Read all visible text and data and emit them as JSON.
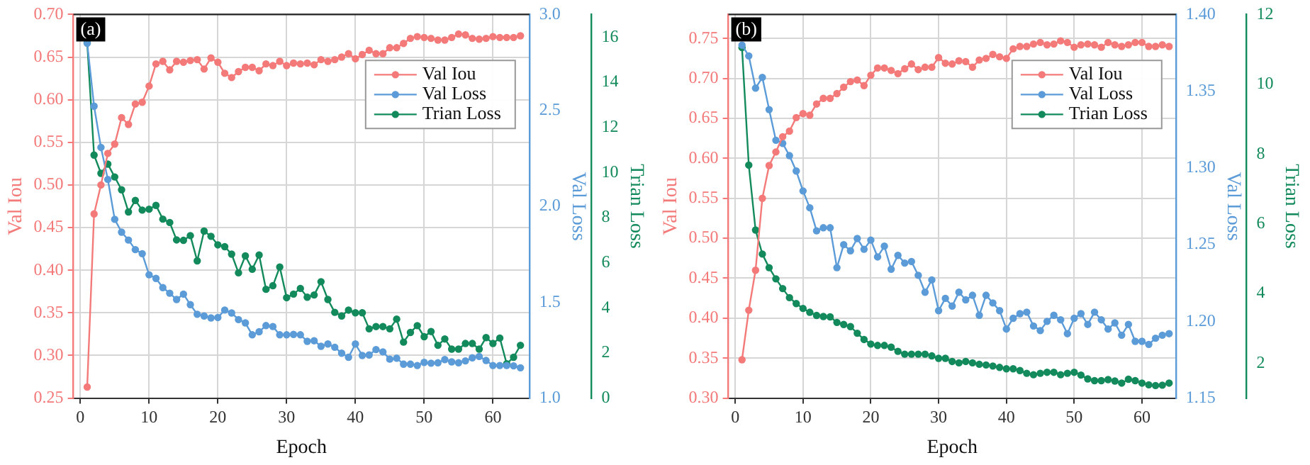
{
  "chart_data": [
    {
      "type": "line",
      "xlabel": "Epoch",
      "ylabel": "Val Iou",
      "y2label": "Val Loss",
      "y3label": "Trian Loss",
      "annotations": [
        "(a)"
      ],
      "grid": true,
      "legend": "top right",
      "marker": "circle",
      "line_style": "solid",
      "x": [
        1,
        2,
        3,
        4,
        5,
        6,
        7,
        8,
        9,
        10,
        11,
        12,
        13,
        14,
        15,
        16,
        17,
        18,
        19,
        20,
        21,
        22,
        23,
        24,
        25,
        26,
        27,
        28,
        29,
        30,
        31,
        32,
        33,
        34,
        35,
        36,
        37,
        38,
        39,
        40,
        41,
        42,
        43,
        44,
        45,
        46,
        47,
        48,
        49,
        50,
        51,
        52,
        53,
        54,
        55,
        56,
        57,
        58,
        59,
        60,
        61,
        62,
        63,
        64
      ],
      "xlim": [
        -1,
        65.3
      ],
      "xticks": [
        0,
        10,
        20,
        30,
        40,
        50,
        60
      ],
      "ylim": [
        0.25,
        0.7
      ],
      "yticks": [
        0.25,
        {
          "value": 0.3,
          "label": "0.30"
        },
        0.35,
        {
          "value": 0.4,
          "label": "0.40"
        },
        0.45,
        {
          "value": 0.5,
          "label": "0.50"
        },
        0.55,
        {
          "value": 0.6,
          "label": "0.60"
        },
        0.65,
        {
          "value": 0.7,
          "label": "0.70"
        }
      ],
      "y2lim": [
        1,
        3
      ],
      "y2ticks": [
        {
          "value": 1,
          "label": "1.0"
        },
        1.5,
        {
          "value": 2,
          "label": "2.0"
        },
        2.5,
        {
          "value": 3,
          "label": "3.0"
        }
      ],
      "y3lim": [
        0,
        17
      ],
      "y3ticks": [
        0,
        2,
        4,
        6,
        8,
        10,
        12,
        14,
        16
      ],
      "series": [
        {
          "name": "Val Iou",
          "color": "#f47a7a",
          "values": [
            0.263,
            0.466,
            0.5,
            0.537,
            0.548,
            0.579,
            0.571,
            0.595,
            0.597,
            0.616,
            0.642,
            0.645,
            0.635,
            0.645,
            0.644,
            0.646,
            0.647,
            0.636,
            0.649,
            0.644,
            0.631,
            0.626,
            0.633,
            0.638,
            0.638,
            0.634,
            0.642,
            0.64,
            0.645,
            0.64,
            0.643,
            0.642,
            0.643,
            0.641,
            0.647,
            0.645,
            0.647,
            0.65,
            0.654,
            0.648,
            0.653,
            0.658,
            0.654,
            0.654,
            0.661,
            0.661,
            0.666,
            0.672,
            0.674,
            0.673,
            0.672,
            0.67,
            0.67,
            0.673,
            0.677,
            0.676,
            0.672,
            0.671,
            0.672,
            0.674,
            0.673,
            0.673,
            0.673,
            0.675
          ]
        },
        {
          "name": "Val Loss",
          "color": "#5b9bd8",
          "axis": "y2",
          "values": [
            2.85,
            2.522,
            2.307,
            2.14,
            1.932,
            1.865,
            1.824,
            1.774,
            1.753,
            1.643,
            1.624,
            1.576,
            1.547,
            1.514,
            1.542,
            1.487,
            1.437,
            1.428,
            1.418,
            1.42,
            1.459,
            1.444,
            1.409,
            1.392,
            1.33,
            1.346,
            1.378,
            1.373,
            1.33,
            1.33,
            1.332,
            1.33,
            1.296,
            1.299,
            1.27,
            1.282,
            1.265,
            1.234,
            1.213,
            1.282,
            1.222,
            1.225,
            1.253,
            1.241,
            1.203,
            1.208,
            1.177,
            1.177,
            1.17,
            1.186,
            1.182,
            1.184,
            1.201,
            1.189,
            1.184,
            1.194,
            1.21,
            1.217,
            1.196,
            1.17,
            1.17,
            1.17,
            1.168,
            1.158
          ]
        },
        {
          "name": "Trian Loss",
          "color": "#138a5c",
          "axis": "y3",
          "values": [
            15.75,
            10.77,
            9.96,
            10.37,
            9.8,
            9.23,
            8.25,
            8.76,
            8.33,
            8.37,
            8.54,
            7.93,
            7.78,
            7.01,
            6.99,
            7.2,
            6.08,
            7.4,
            7.17,
            6.79,
            6.71,
            6.38,
            5.55,
            6.3,
            5.71,
            6.34,
            4.82,
            4.98,
            5.81,
            4.45,
            4.61,
            4.86,
            4.47,
            4.57,
            5.16,
            4.37,
            3.8,
            3.64,
            3.9,
            3.78,
            3.78,
            3.07,
            3.17,
            3.17,
            3.07,
            3.5,
            2.48,
            2.91,
            3.21,
            2.72,
            2.95,
            2.34,
            2.62,
            2.17,
            2.17,
            2.42,
            2.42,
            2.17,
            2.68,
            2.42,
            2.66,
            1.52,
            1.81,
            2.34
          ]
        }
      ]
    },
    {
      "type": "line",
      "xlabel": "Epoch",
      "ylabel": "Val Iou",
      "y2label": "Val Loss",
      "y3label": "Trian Loss",
      "annotations": [
        "(b)"
      ],
      "grid": true,
      "legend": "top right",
      "marker": "circle",
      "line_style": "solid",
      "x": [
        1,
        2,
        3,
        4,
        5,
        6,
        7,
        8,
        9,
        10,
        11,
        12,
        13,
        14,
        15,
        16,
        17,
        18,
        19,
        20,
        21,
        22,
        23,
        24,
        25,
        26,
        27,
        28,
        29,
        30,
        31,
        32,
        33,
        34,
        35,
        36,
        37,
        38,
        39,
        40,
        41,
        42,
        43,
        44,
        45,
        46,
        47,
        48,
        49,
        50,
        51,
        52,
        53,
        54,
        55,
        56,
        57,
        58,
        59,
        60,
        61,
        62,
        63,
        64
      ],
      "xlim": [
        -1,
        65
      ],
      "xticks": [
        0,
        10,
        20,
        30,
        40,
        50,
        60
      ],
      "ylim": [
        0.3,
        0.78
      ],
      "yticks": [
        {
          "value": 0.3,
          "label": "0.30"
        },
        0.35,
        {
          "value": 0.4,
          "label": "0.40"
        },
        0.45,
        {
          "value": 0.5,
          "label": "0.50"
        },
        0.55,
        {
          "value": 0.6,
          "label": "0.60"
        },
        0.65,
        {
          "value": 0.7,
          "label": "0.70"
        },
        0.75
      ],
      "y2lim": [
        1.15,
        1.4
      ],
      "y2ticks": [
        1.15,
        {
          "value": 1.2,
          "label": "1.20"
        },
        1.25,
        {
          "value": 1.3,
          "label": "1.30"
        },
        1.35,
        {
          "value": 1.4,
          "label": "1.40"
        }
      ],
      "y3lim": [
        1,
        12
      ],
      "y3ticks": [
        2,
        4,
        6,
        8,
        10,
        12
      ],
      "series": [
        {
          "name": "Val Iou",
          "color": "#f47a7a",
          "values": [
            0.348,
            0.41,
            0.46,
            0.55,
            0.591,
            0.608,
            0.627,
            0.634,
            0.651,
            0.656,
            0.654,
            0.668,
            0.675,
            0.675,
            0.681,
            0.689,
            0.696,
            0.698,
            0.691,
            0.704,
            0.713,
            0.713,
            0.71,
            0.706,
            0.712,
            0.718,
            0.711,
            0.714,
            0.714,
            0.726,
            0.719,
            0.718,
            0.722,
            0.721,
            0.714,
            0.723,
            0.725,
            0.73,
            0.727,
            0.725,
            0.737,
            0.74,
            0.74,
            0.743,
            0.745,
            0.742,
            0.743,
            0.747,
            0.745,
            0.739,
            0.742,
            0.743,
            0.742,
            0.739,
            0.745,
            0.742,
            0.74,
            0.742,
            0.745,
            0.745,
            0.74,
            0.74,
            0.742,
            0.74
          ]
        },
        {
          "name": "Val Loss",
          "color": "#5b9bd8",
          "axis": "y2",
          "values": [
            1.38,
            1.373,
            1.352,
            1.359,
            1.338,
            1.318,
            1.316,
            1.308,
            1.298,
            1.285,
            1.274,
            1.259,
            1.261,
            1.261,
            1.235,
            1.25,
            1.246,
            1.254,
            1.247,
            1.253,
            1.242,
            1.249,
            1.234,
            1.243,
            1.238,
            1.239,
            1.23,
            1.219,
            1.227,
            1.207,
            1.215,
            1.21,
            1.219,
            1.214,
            1.217,
            1.204,
            1.217,
            1.212,
            1.207,
            1.195,
            1.202,
            1.205,
            1.206,
            1.197,
            1.194,
            1.2,
            1.204,
            1.201,
            1.192,
            1.202,
            1.205,
            1.198,
            1.206,
            1.201,
            1.195,
            1.199,
            1.191,
            1.198,
            1.187,
            1.187,
            1.185,
            1.189,
            1.191,
            1.192
          ]
        },
        {
          "name": "Trian Loss",
          "color": "#138a5c",
          "axis": "y3",
          "values": [
            11.05,
            7.68,
            5.82,
            5.13,
            4.74,
            4.42,
            4.14,
            3.88,
            3.71,
            3.57,
            3.46,
            3.37,
            3.34,
            3.33,
            3.17,
            3.11,
            3.05,
            2.86,
            2.68,
            2.55,
            2.51,
            2.51,
            2.46,
            2.34,
            2.26,
            2.26,
            2.26,
            2.26,
            2.21,
            2.14,
            2.14,
            2.05,
            2.01,
            2.05,
            2.01,
            1.97,
            1.95,
            1.92,
            1.88,
            1.84,
            1.84,
            1.79,
            1.71,
            1.67,
            1.71,
            1.74,
            1.74,
            1.67,
            1.71,
            1.74,
            1.66,
            1.55,
            1.5,
            1.5,
            1.53,
            1.49,
            1.43,
            1.54,
            1.5,
            1.43,
            1.38,
            1.36,
            1.37,
            1.43
          ]
        }
      ]
    }
  ]
}
